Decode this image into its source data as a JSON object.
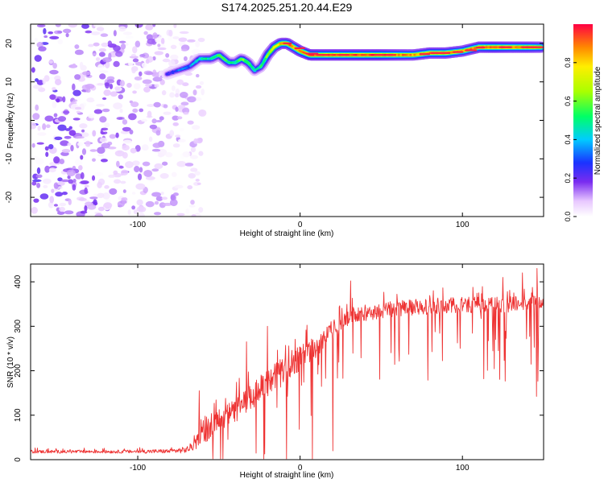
{
  "title": "S174.2025.251.20.44.E29",
  "colors": {
    "snr_line": "#ee3333",
    "axis": "#000000",
    "background": "#ffffff"
  },
  "chart_data": [
    {
      "type": "heatmap",
      "name": "spectrogram",
      "xlabel": "Height of straight line (km)",
      "ylabel": "Frequency (Hz)",
      "xlim": [
        -166,
        150
      ],
      "ylim": [
        -25,
        25
      ],
      "xticks": [
        -100,
        0,
        100
      ],
      "xtick_labels": [
        "-100",
        "0",
        "100"
      ],
      "yticks": [
        20,
        10,
        0,
        -10,
        -20
      ],
      "ytick_labels": [
        "20",
        "10",
        "0",
        "-10",
        "-20"
      ],
      "colorbar": {
        "label": "Normalized spectral amplitude",
        "range": [
          0,
          1
        ],
        "ticks": [
          0.0,
          0.2,
          0.4,
          0.6,
          0.8
        ],
        "tick_labels": [
          "0.0",
          "0.2",
          "0.4",
          "0.6",
          "0.8"
        ]
      },
      "ridge": {
        "x": [
          -82,
          -75,
          -68,
          -62,
          -55,
          -50,
          -44,
          -40,
          -36,
          -32,
          -28,
          -24,
          -20,
          -16,
          -12,
          -8,
          -4,
          0,
          6,
          12,
          20,
          30,
          40,
          50,
          60,
          70,
          80,
          90,
          100,
          110,
          120,
          130,
          140,
          148
        ],
        "freq": [
          12,
          13,
          14,
          16,
          16,
          17,
          15,
          15,
          16,
          15,
          13,
          14,
          17,
          19,
          20,
          20,
          19,
          18,
          17,
          17,
          17,
          17,
          17,
          17,
          17,
          17,
          17.5,
          17.5,
          18,
          19,
          19,
          19,
          19,
          19
        ],
        "amplitude": [
          0.25,
          0.3,
          0.35,
          0.45,
          0.5,
          0.55,
          0.55,
          0.5,
          0.6,
          0.55,
          0.45,
          0.5,
          0.65,
          0.75,
          0.85,
          0.9,
          0.85,
          0.9,
          0.95,
          0.95,
          0.95,
          0.95,
          0.95,
          0.95,
          0.9,
          0.85,
          0.9,
          0.9,
          0.85,
          0.9,
          0.95,
          0.9,
          0.9,
          0.85
        ]
      },
      "noise_region_x": [
        -166,
        -60
      ],
      "noise_amplitude": [
        0.0,
        0.25
      ]
    },
    {
      "type": "line",
      "name": "snr",
      "xlabel": "Height of straight line (km)",
      "ylabel": "SNR (10 * v/v)",
      "xlim": [
        -166,
        150
      ],
      "ylim": [
        0,
        440
      ],
      "xticks": [
        -100,
        0,
        100
      ],
      "xtick_labels": [
        "-100",
        "0",
        "100"
      ],
      "yticks": [
        0,
        100,
        200,
        300,
        400
      ],
      "ytick_labels": [
        "0",
        "100",
        "200",
        "300",
        "400"
      ],
      "series": [
        {
          "name": "SNR",
          "envelope_x": [
            -166,
            -140,
            -110,
            -80,
            -70,
            -64,
            -62,
            -58,
            -50,
            -40,
            -30,
            -20,
            -10,
            0,
            10,
            20,
            30,
            40,
            50,
            60,
            80,
            100,
            120,
            140,
            150
          ],
          "envelope_y": [
            18,
            18,
            18,
            19,
            22,
            35,
            60,
            55,
            90,
            110,
            140,
            170,
            200,
            230,
            255,
            290,
            320,
            330,
            335,
            340,
            345,
            348,
            348,
            350,
            350
          ],
          "noise_amplitude": [
            6,
            6,
            6,
            8,
            12,
            20,
            40,
            30,
            40,
            45,
            55,
            55,
            55,
            50,
            45,
            40,
            35,
            30,
            30,
            30,
            30,
            30,
            30,
            30,
            30
          ],
          "peaks": [
            {
              "x": -62,
              "y": 155
            },
            {
              "x": -33,
              "y": 265
            },
            {
              "x": -20,
              "y": 300
            },
            {
              "x": 31,
              "y": 402
            },
            {
              "x": 125,
              "y": 410
            },
            {
              "x": 146,
              "y": 430
            },
            {
              "x": 137,
              "y": 420
            }
          ]
        }
      ]
    }
  ]
}
